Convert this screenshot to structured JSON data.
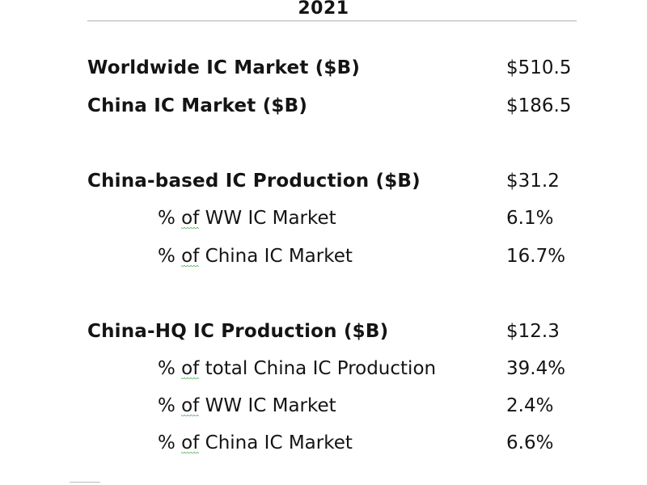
{
  "header": {
    "year": "2021"
  },
  "market": {
    "worldwide": {
      "label": "Worldwide IC Market ($B)",
      "value": "$510.5"
    },
    "china": {
      "label": "China IC Market ($B)",
      "value": "$186.5"
    }
  },
  "china_based": {
    "label": "China-based IC Production ($B)",
    "value": "$31.2",
    "rows": [
      {
        "pct": "%",
        "of": "of",
        "rest": "WW IC Market",
        "value": "6.1%"
      },
      {
        "pct": "%",
        "of": "of",
        "rest": "China IC Market",
        "value": "16.7%"
      }
    ]
  },
  "china_hq": {
    "label": "China-HQ IC Production ($B)",
    "value": "$12.3",
    "rows": [
      {
        "pct": "%",
        "of": "of",
        "rest": "total China IC Production",
        "value": "39.4%"
      },
      {
        "pct": "%",
        "of": "of",
        "rest": "WW IC Market",
        "value": "2.4%"
      },
      {
        "pct": "%",
        "of": "of",
        "rest": "China IC Market",
        "value": "6.6%"
      }
    ]
  },
  "colors": {
    "text": "#141414",
    "spellcheck_underline": "#2e9c3a",
    "rule": "#c8c8c8"
  }
}
